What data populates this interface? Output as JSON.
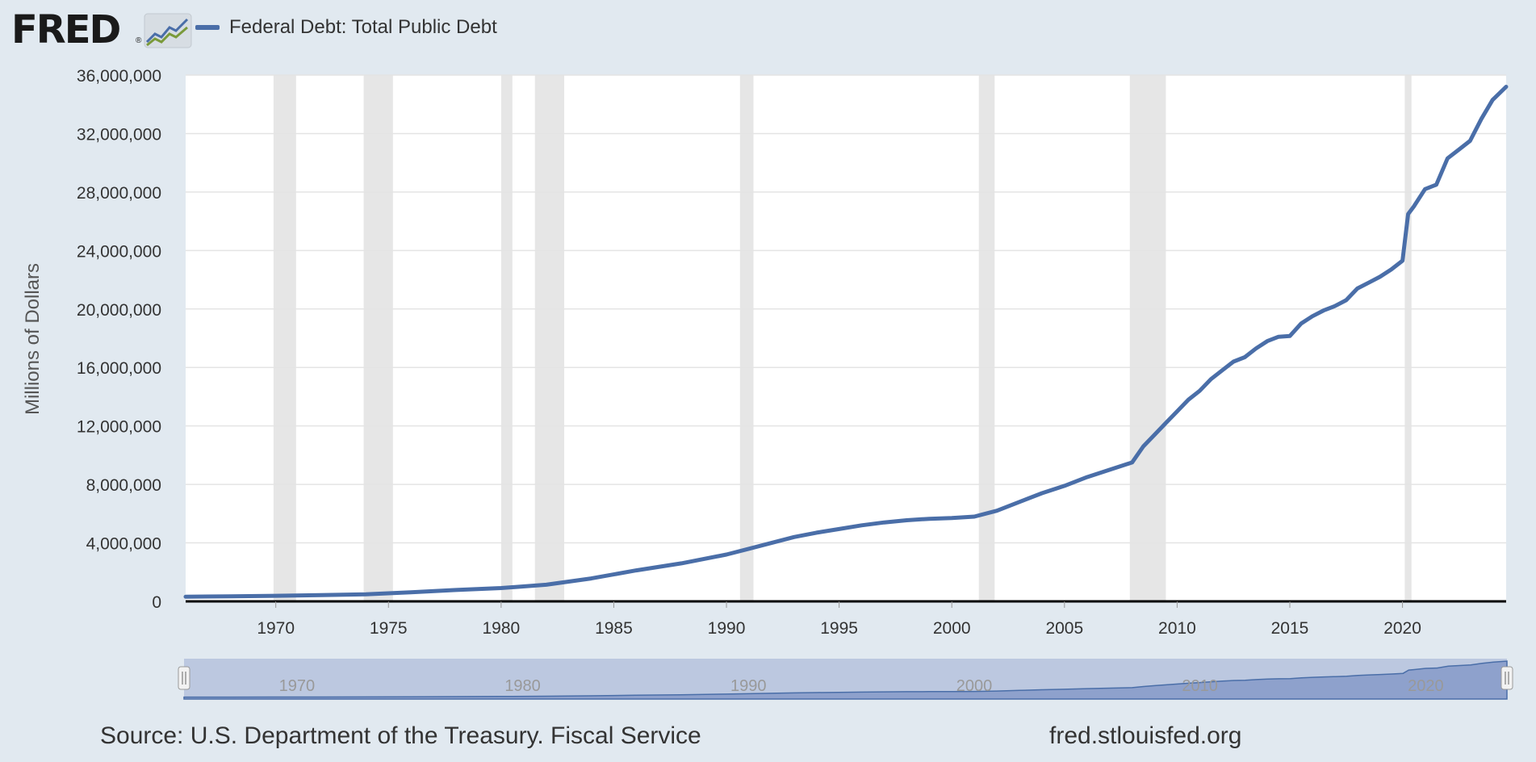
{
  "logo": {
    "text": "FRED",
    "reg": "®",
    "icon": "fred-chart-logo-icon"
  },
  "source": "Source: U.S. Department of the Treasury. Fiscal Service",
  "site": "fred.stlouisfed.org",
  "colors": {
    "line": "#4a6ea8",
    "recession": "#e6e6e6",
    "navigator_fill": "#8ea1cc",
    "navigator_bg": "#bcc8e0"
  },
  "navigator": {
    "labels": [
      "1970",
      "1980",
      "1990",
      "2000",
      "2010",
      "2020"
    ]
  },
  "chart_data": {
    "type": "line",
    "title": "",
    "ylabel": "Millions of Dollars",
    "xlabel": "",
    "xlim": [
      1966.0,
      2024.6
    ],
    "ylim": [
      0,
      36000000
    ],
    "x_ticks": [
      1970,
      1975,
      1980,
      1985,
      1990,
      1995,
      2000,
      2005,
      2010,
      2015,
      2020
    ],
    "x_tick_labels": [
      "1970",
      "1975",
      "1980",
      "1985",
      "1990",
      "1995",
      "2000",
      "2005",
      "2010",
      "2015",
      "2020"
    ],
    "y_ticks": [
      0,
      4000000,
      8000000,
      12000000,
      16000000,
      20000000,
      24000000,
      28000000,
      32000000,
      36000000
    ],
    "y_tick_labels": [
      "0",
      "4,000,000",
      "8,000,000",
      "12,000,000",
      "16,000,000",
      "20,000,000",
      "24,000,000",
      "28,000,000",
      "32,000,000",
      "36,000,000"
    ],
    "grid": true,
    "legend_position": "top-left",
    "recessions": [
      [
        1969.9,
        1970.9
      ],
      [
        1973.9,
        1975.2
      ],
      [
        1980.0,
        1980.5
      ],
      [
        1981.5,
        1982.8
      ],
      [
        1990.6,
        1991.2
      ],
      [
        2001.2,
        2001.9
      ],
      [
        2007.9,
        2009.5
      ],
      [
        2020.1,
        2020.4
      ]
    ],
    "series": [
      {
        "name": "Federal Debt: Total Public Debt",
        "x": [
          1966.0,
          1968.0,
          1970.0,
          1972.0,
          1974.0,
          1976.0,
          1978.0,
          1980.0,
          1982.0,
          1984.0,
          1986.0,
          1988.0,
          1990.0,
          1991.0,
          1992.0,
          1993.0,
          1994.0,
          1995.0,
          1996.0,
          1997.0,
          1998.0,
          1999.0,
          2000.0,
          2001.0,
          2002.0,
          2003.0,
          2004.0,
          2005.0,
          2006.0,
          2007.0,
          2008.0,
          2008.5,
          2009.0,
          2009.5,
          2010.0,
          2010.5,
          2011.0,
          2011.5,
          2012.0,
          2012.5,
          2013.0,
          2013.5,
          2014.0,
          2014.5,
          2015.0,
          2015.5,
          2016.0,
          2016.5,
          2017.0,
          2017.5,
          2018.0,
          2018.5,
          2019.0,
          2019.5,
          2020.0,
          2020.25,
          2020.5,
          2021.0,
          2021.5,
          2022.0,
          2022.5,
          2023.0,
          2023.5,
          2024.0,
          2024.6
        ],
        "values": [
          320000,
          350000,
          380000,
          430000,
          480000,
          620000,
          780000,
          910000,
          1140000,
          1570000,
          2120000,
          2600000,
          3200000,
          3600000,
          4000000,
          4400000,
          4700000,
          4950000,
          5200000,
          5400000,
          5550000,
          5650000,
          5700000,
          5800000,
          6200000,
          6800000,
          7400000,
          7900000,
          8500000,
          9000000,
          9500000,
          10600000,
          11400000,
          12200000,
          13000000,
          13800000,
          14400000,
          15200000,
          15800000,
          16400000,
          16700000,
          17300000,
          17800000,
          18100000,
          18150000,
          19000000,
          19500000,
          19900000,
          20200000,
          20600000,
          21400000,
          21800000,
          22200000,
          22700000,
          23300000,
          26500000,
          27000000,
          28200000,
          28500000,
          30300000,
          30900000,
          31500000,
          33000000,
          34300000,
          35200000
        ]
      }
    ]
  }
}
